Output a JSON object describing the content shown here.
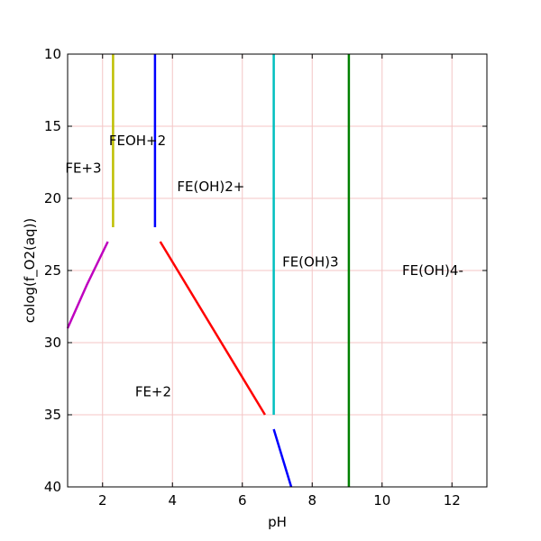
{
  "chart_data": {
    "type": "line",
    "title": "",
    "xlabel": "pH",
    "ylabel": "colog(f_O2(aq))",
    "xlim": [
      1,
      13
    ],
    "ylim": [
      10,
      40
    ],
    "y_inverted": true,
    "grid": true,
    "grid_color": "#f4c6c6",
    "x_ticks": [
      2,
      4,
      6,
      8,
      10,
      12
    ],
    "y_ticks": [
      10,
      15,
      20,
      25,
      30,
      35,
      40
    ],
    "series": [
      {
        "name": "FE+3 / FEOH+2 boundary",
        "color": "#bfbf00",
        "points": [
          [
            2.3,
            10
          ],
          [
            2.3,
            22
          ]
        ]
      },
      {
        "name": "FEOH+2 / FE(OH)2+ boundary",
        "color": "#0000ff",
        "points": [
          [
            3.5,
            10
          ],
          [
            3.5,
            22
          ]
        ]
      },
      {
        "name": "FE(OH)2+ / FE(OH)3 boundary",
        "color": "#00bfbf",
        "points": [
          [
            6.9,
            10
          ],
          [
            6.9,
            35
          ]
        ]
      },
      {
        "name": "FE(OH)3 / FE(OH)4- boundary",
        "color": "#008000",
        "points": [
          [
            9.05,
            10
          ],
          [
            9.05,
            40
          ]
        ]
      },
      {
        "name": "FE+3 / FE+2 boundary",
        "color": "#bf00bf",
        "points": [
          [
            1.0,
            29
          ],
          [
            1.55,
            26
          ],
          [
            2.15,
            23
          ]
        ]
      },
      {
        "name": "FE(OH)2+ / FE+2 boundary",
        "color": "#ff0000",
        "points": [
          [
            3.65,
            23
          ],
          [
            6.65,
            35
          ]
        ]
      },
      {
        "name": "FE+2 / FE(OH)3 boundary",
        "color": "#0000ff",
        "points": [
          [
            6.9,
            36
          ],
          [
            7.4,
            40
          ]
        ]
      }
    ],
    "annotations": [
      {
        "text": "FEOH+2",
        "x": 3.0,
        "y": 16.0
      },
      {
        "text": "FE+3",
        "x": 1.45,
        "y": 17.9
      },
      {
        "text": "FE(OH)2+",
        "x": 5.1,
        "y": 19.2
      },
      {
        "text": "FE(OH)3",
        "x": 7.95,
        "y": 24.4
      },
      {
        "text": "FE(OH)4-",
        "x": 11.45,
        "y": 25.0
      },
      {
        "text": "FE+2",
        "x": 3.45,
        "y": 33.4
      }
    ]
  }
}
